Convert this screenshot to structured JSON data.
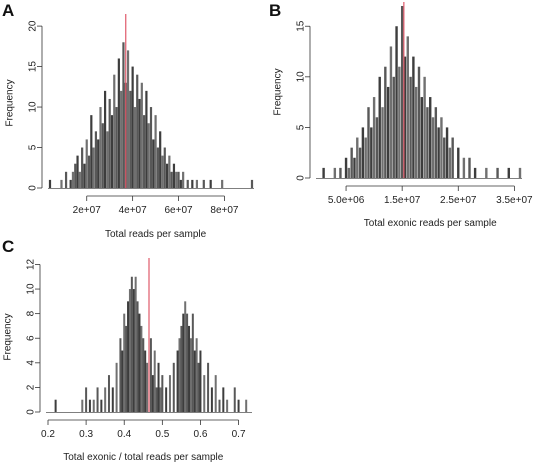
{
  "panels": [
    "A",
    "B",
    "C"
  ],
  "chart_data": [
    {
      "type": "bar",
      "panel": "A",
      "xlabel": "Total reads per sample",
      "ylabel": "Frequency",
      "xlim": [
        4000000,
        92000000
      ],
      "ylim": [
        0,
        21
      ],
      "xticks": [
        20000000,
        40000000,
        60000000,
        80000000
      ],
      "xtick_labels": [
        "2e+07",
        "4e+07",
        "6e+07",
        "8e+07"
      ],
      "yticks": [
        0,
        5,
        10,
        15,
        20
      ],
      "ytick_labels": [
        "0",
        "5",
        "10",
        "15",
        "20"
      ],
      "vline": 37000000,
      "bar_color": "#333333",
      "vline_color": "#e05a6a",
      "bars": [
        [
          4000000,
          1
        ],
        [
          9000000,
          1
        ],
        [
          11000000,
          2
        ],
        [
          13000000,
          1
        ],
        [
          14000000,
          2
        ],
        [
          15000000,
          3
        ],
        [
          16000000,
          4
        ],
        [
          17000000,
          2
        ],
        [
          18000000,
          5
        ],
        [
          19000000,
          3
        ],
        [
          20000000,
          6
        ],
        [
          21000000,
          4
        ],
        [
          22000000,
          9
        ],
        [
          23000000,
          5
        ],
        [
          24000000,
          7
        ],
        [
          25000000,
          6
        ],
        [
          26000000,
          10
        ],
        [
          27000000,
          8
        ],
        [
          28000000,
          12
        ],
        [
          29000000,
          7
        ],
        [
          30000000,
          11
        ],
        [
          31000000,
          9
        ],
        [
          32000000,
          14
        ],
        [
          33000000,
          10
        ],
        [
          34000000,
          16
        ],
        [
          35000000,
          12
        ],
        [
          36000000,
          18
        ],
        [
          37000000,
          13
        ],
        [
          38000000,
          17
        ],
        [
          39000000,
          12
        ],
        [
          40000000,
          15
        ],
        [
          41000000,
          10
        ],
        [
          42000000,
          14
        ],
        [
          43000000,
          11
        ],
        [
          44000000,
          13
        ],
        [
          45000000,
          9
        ],
        [
          46000000,
          12
        ],
        [
          47000000,
          8
        ],
        [
          48000000,
          10
        ],
        [
          49000000,
          6
        ],
        [
          50000000,
          9
        ],
        [
          51000000,
          5
        ],
        [
          52000000,
          7
        ],
        [
          53000000,
          4
        ],
        [
          54000000,
          5
        ],
        [
          55000000,
          3
        ],
        [
          56000000,
          4
        ],
        [
          57000000,
          2
        ],
        [
          58000000,
          3
        ],
        [
          59000000,
          2
        ],
        [
          60000000,
          2
        ],
        [
          61000000,
          1
        ],
        [
          62000000,
          2
        ],
        [
          64000000,
          1
        ],
        [
          66000000,
          1
        ],
        [
          68000000,
          1
        ],
        [
          71000000,
          1
        ],
        [
          74000000,
          1
        ],
        [
          79000000,
          1
        ],
        [
          92000000,
          1
        ]
      ]
    },
    {
      "type": "bar",
      "panel": "B",
      "xlabel": "Total exonic reads per sample",
      "ylabel": "Frequency",
      "xlim": [
        0,
        36000000
      ],
      "ylim": [
        0,
        17
      ],
      "xticks": [
        5000000,
        15000000,
        25000000,
        35000000
      ],
      "xtick_labels": [
        "5.0e+06",
        "1.5e+07",
        "2.5e+07",
        "3.5e+07"
      ],
      "yticks": [
        0,
        5,
        10,
        15
      ],
      "ytick_labels": [
        "0",
        "5",
        "10",
        "15"
      ],
      "vline": 15300000,
      "bar_color": "#333333",
      "vline_color": "#e05a6a",
      "bars": [
        [
          1000000,
          1
        ],
        [
          3000000,
          1
        ],
        [
          4000000,
          1
        ],
        [
          5000000,
          2
        ],
        [
          5500000,
          1
        ],
        [
          6000000,
          3
        ],
        [
          6500000,
          2
        ],
        [
          7000000,
          4
        ],
        [
          7500000,
          3
        ],
        [
          8000000,
          5
        ],
        [
          8500000,
          4
        ],
        [
          9000000,
          7
        ],
        [
          9500000,
          5
        ],
        [
          10000000,
          8
        ],
        [
          10500000,
          6
        ],
        [
          11000000,
          10
        ],
        [
          11500000,
          7
        ],
        [
          12000000,
          11
        ],
        [
          12500000,
          9
        ],
        [
          13000000,
          13
        ],
        [
          13500000,
          10
        ],
        [
          14000000,
          15
        ],
        [
          14500000,
          11
        ],
        [
          15000000,
          17
        ],
        [
          15500000,
          12
        ],
        [
          16000000,
          14
        ],
        [
          16500000,
          10
        ],
        [
          17000000,
          12
        ],
        [
          17500000,
          9
        ],
        [
          18000000,
          11
        ],
        [
          18500000,
          8
        ],
        [
          19000000,
          10
        ],
        [
          19500000,
          7
        ],
        [
          20000000,
          8
        ],
        [
          20500000,
          6
        ],
        [
          21000000,
          7
        ],
        [
          21500000,
          5
        ],
        [
          22000000,
          6
        ],
        [
          22500000,
          4
        ],
        [
          23000000,
          5
        ],
        [
          23500000,
          3
        ],
        [
          24000000,
          4
        ],
        [
          25000000,
          3
        ],
        [
          26000000,
          2
        ],
        [
          27000000,
          2
        ],
        [
          28000000,
          1
        ],
        [
          30000000,
          1
        ],
        [
          32000000,
          1
        ],
        [
          34000000,
          1
        ],
        [
          36000000,
          1
        ]
      ]
    },
    {
      "type": "bar",
      "panel": "C",
      "xlabel": "Total exonic / total reads per sample",
      "ylabel": "Frequency",
      "xlim": [
        0.2,
        0.73
      ],
      "ylim": [
        0,
        12.2
      ],
      "xticks": [
        0.2,
        0.3,
        0.4,
        0.5,
        0.6,
        0.7
      ],
      "xtick_labels": [
        "0.2",
        "0.3",
        "0.4",
        "0.5",
        "0.6",
        "0.7"
      ],
      "yticks": [
        0,
        2,
        4,
        6,
        8,
        10,
        12
      ],
      "ytick_labels": [
        "0",
        "2",
        "4",
        "6",
        "8",
        "10",
        "12"
      ],
      "vline": 0.465,
      "bar_color": "#333333",
      "vline_color": "#e05a6a",
      "bars": [
        [
          0.22,
          1
        ],
        [
          0.29,
          1
        ],
        [
          0.3,
          2
        ],
        [
          0.31,
          1
        ],
        [
          0.32,
          1
        ],
        [
          0.33,
          2
        ],
        [
          0.34,
          1
        ],
        [
          0.35,
          2
        ],
        [
          0.36,
          3
        ],
        [
          0.37,
          2
        ],
        [
          0.38,
          4
        ],
        [
          0.39,
          6
        ],
        [
          0.395,
          5
        ],
        [
          0.4,
          8
        ],
        [
          0.405,
          7
        ],
        [
          0.41,
          9
        ],
        [
          0.415,
          10
        ],
        [
          0.42,
          11
        ],
        [
          0.425,
          10
        ],
        [
          0.43,
          11
        ],
        [
          0.435,
          9
        ],
        [
          0.44,
          8
        ],
        [
          0.445,
          7
        ],
        [
          0.45,
          6
        ],
        [
          0.455,
          5
        ],
        [
          0.46,
          4
        ],
        [
          0.47,
          6
        ],
        [
          0.475,
          3
        ],
        [
          0.48,
          5
        ],
        [
          0.485,
          2
        ],
        [
          0.49,
          4
        ],
        [
          0.495,
          2
        ],
        [
          0.5,
          3
        ],
        [
          0.51,
          2
        ],
        [
          0.52,
          3
        ],
        [
          0.53,
          4
        ],
        [
          0.54,
          5
        ],
        [
          0.545,
          6
        ],
        [
          0.55,
          7
        ],
        [
          0.555,
          8
        ],
        [
          0.56,
          9
        ],
        [
          0.565,
          8
        ],
        [
          0.57,
          7
        ],
        [
          0.575,
          6
        ],
        [
          0.58,
          8
        ],
        [
          0.585,
          5
        ],
        [
          0.59,
          6
        ],
        [
          0.595,
          4
        ],
        [
          0.6,
          5
        ],
        [
          0.61,
          3
        ],
        [
          0.62,
          4
        ],
        [
          0.63,
          2
        ],
        [
          0.64,
          3
        ],
        [
          0.65,
          1
        ],
        [
          0.66,
          2
        ],
        [
          0.67,
          1
        ],
        [
          0.69,
          2
        ],
        [
          0.7,
          1
        ],
        [
          0.72,
          1
        ]
      ]
    }
  ]
}
